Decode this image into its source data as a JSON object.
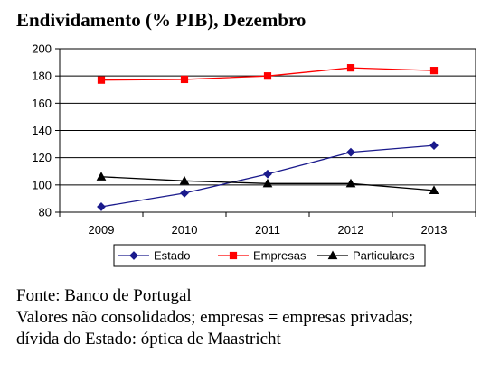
{
  "title": "Endividamento (% PIB), Dezembro",
  "footer": {
    "line1": "Fonte: Banco de Portugal",
    "line2": "Valores não consolidados; empresas = empresas privadas;",
    "line3": "dívida do Estado: óptica  de Maastricht"
  },
  "chart_data": {
    "type": "line",
    "title": "Endividamento (% PIB), Dezembro",
    "xlabel": "",
    "ylabel": "",
    "x": [
      "2009",
      "2010",
      "2011",
      "2012",
      "2013"
    ],
    "ylim": [
      80,
      200
    ],
    "yticks": [
      80,
      100,
      120,
      140,
      160,
      180,
      200
    ],
    "grid": "horizontal",
    "legend": "bottom",
    "series": [
      {
        "name": "Estado",
        "values": [
          84,
          94,
          108,
          124,
          129
        ],
        "color": "#1a1a8c",
        "marker": "diamond"
      },
      {
        "name": "Empresas",
        "values": [
          177,
          177.5,
          180,
          186,
          184
        ],
        "color": "#ff0000",
        "marker": "square"
      },
      {
        "name": "Particulares",
        "values": [
          106,
          103,
          101,
          101,
          96
        ],
        "color": "#000000",
        "marker": "triangle"
      }
    ]
  }
}
